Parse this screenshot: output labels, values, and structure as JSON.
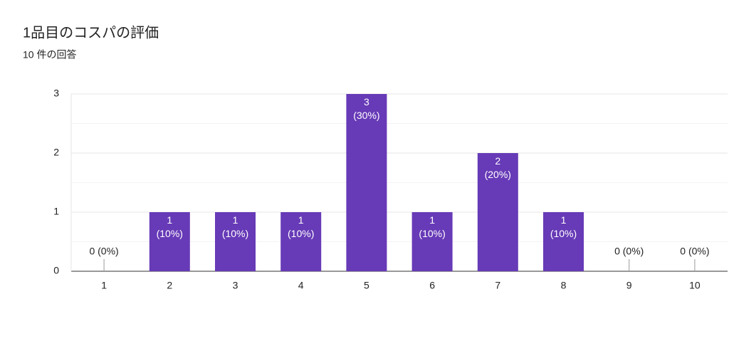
{
  "chart_data": {
    "type": "bar",
    "title": "1品目のコスパの評価",
    "subtitle": "10 件の回答",
    "categories": [
      "1",
      "2",
      "3",
      "4",
      "5",
      "6",
      "7",
      "8",
      "9",
      "10"
    ],
    "values": [
      0,
      1,
      1,
      1,
      3,
      1,
      2,
      1,
      0,
      0
    ],
    "value_labels": [
      "0 (0%)",
      "1 (10%)",
      "1 (10%)",
      "1 (10%)",
      "3 (30%)",
      "1 (10%)",
      "2 (20%)",
      "1 (10%)",
      "0 (0%)",
      "0 (0%)"
    ],
    "color": "#673ab7",
    "ylim": [
      0,
      3
    ],
    "yticks": [
      0,
      1,
      2,
      3
    ],
    "minor_yticks": [
      0.5,
      1.5,
      2.5
    ],
    "grid": true
  }
}
